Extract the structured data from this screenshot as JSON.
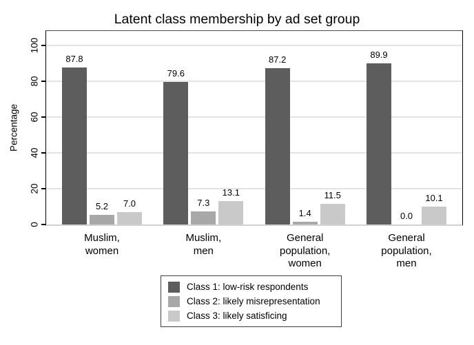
{
  "figure": {
    "title": "Latent class membership by ad set group"
  },
  "chart_data": {
    "type": "bar",
    "title": "Latent class membership by ad set group",
    "xlabel": "",
    "ylabel": "Percentage",
    "categories": [
      "Muslim,\nwomen",
      "Muslim,\nmen",
      "General\npopulation,\nwomen",
      "General\npopulation,\nmen"
    ],
    "series": [
      {
        "name": "Class 1: low-risk respondents",
        "color": "#5d5d5d",
        "values": [
          87.8,
          79.6,
          87.2,
          89.9
        ]
      },
      {
        "name": "Class 2: likely misrepresentation",
        "color": "#a8a8a8",
        "values": [
          5.2,
          7.3,
          1.4,
          0.0
        ]
      },
      {
        "name": "Class 3: likely satisficing",
        "color": "#c9c9c9",
        "values": [
          7.0,
          13.1,
          11.5,
          10.1
        ]
      }
    ],
    "yticks": [
      0,
      20,
      40,
      60,
      80,
      100
    ],
    "ylim": [
      0,
      100
    ],
    "grid": true,
    "value_labels": true,
    "value_label_format": "one-decimal",
    "legend_position": "bottom-center",
    "colors": {
      "background": "#ffffff",
      "grid": "#e4e4e4",
      "axis": "#000000",
      "baseline": "#d2d2d2",
      "text": "#000000"
    }
  }
}
